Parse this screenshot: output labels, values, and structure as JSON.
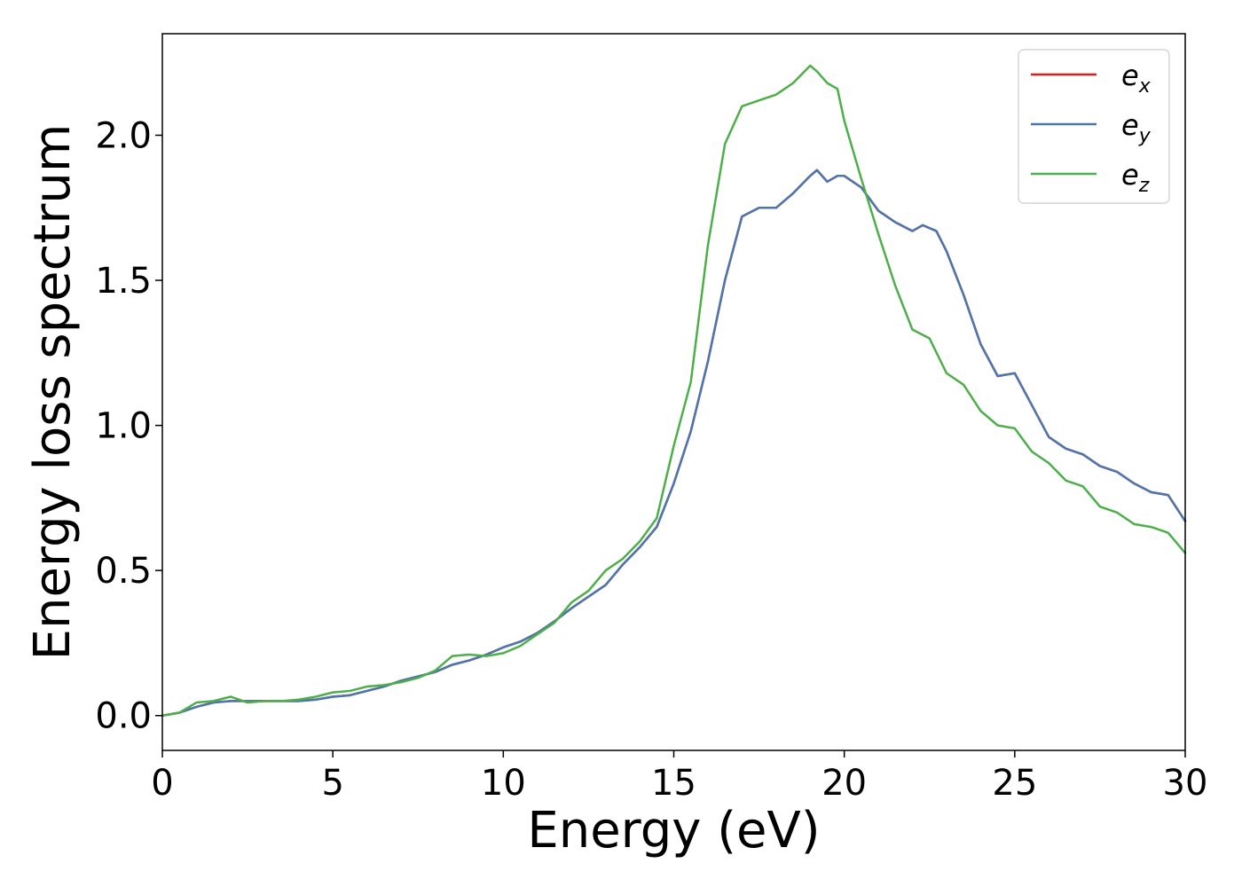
{
  "chart_data": {
    "type": "line",
    "title": "",
    "xlabel": "Energy (eV)",
    "ylabel": "Energy loss spectrum",
    "xlim": [
      0,
      30
    ],
    "ylim": [
      -0.12,
      2.35
    ],
    "xticks": [
      0,
      5,
      10,
      15,
      20,
      25,
      30
    ],
    "xtick_labels": [
      "0",
      "5",
      "10",
      "15",
      "20",
      "25",
      "30"
    ],
    "yticks": [
      0.0,
      0.5,
      1.0,
      1.5,
      2.0
    ],
    "ytick_labels": [
      "0.0",
      "0.5",
      "1.0",
      "1.5",
      "2.0"
    ],
    "grid": false,
    "legend_position": "top-right",
    "series": [
      {
        "name": "e_x",
        "label_base": "e",
        "label_sub": "x",
        "color": "#e41a1c",
        "x": [
          0,
          0.5,
          1,
          1.5,
          2,
          2.5,
          3,
          3.5,
          4,
          4.5,
          5,
          5.5,
          6,
          6.5,
          7,
          7.5,
          8,
          8.5,
          9,
          9.5,
          10,
          10.5,
          11,
          11.5,
          12,
          12.5,
          13,
          13.5,
          14,
          14.5,
          15,
          15.5,
          16,
          16.5,
          17,
          17.5,
          18,
          18.5,
          19,
          19.2,
          19.5,
          19.8,
          20,
          20.5,
          21,
          21.5,
          22,
          22.3,
          22.7,
          23,
          23.5,
          24,
          24.5,
          25,
          25.5,
          26,
          26.5,
          27,
          27.5,
          28,
          28.5,
          29,
          29.5,
          30
        ],
        "y": [
          0.0,
          0.01,
          0.03,
          0.045,
          0.05,
          0.05,
          0.05,
          0.05,
          0.05,
          0.055,
          0.065,
          0.07,
          0.085,
          0.1,
          0.12,
          0.135,
          0.15,
          0.175,
          0.19,
          0.21,
          0.235,
          0.255,
          0.285,
          0.325,
          0.37,
          0.41,
          0.45,
          0.52,
          0.58,
          0.65,
          0.8,
          0.98,
          1.22,
          1.5,
          1.72,
          1.75,
          1.75,
          1.8,
          1.86,
          1.88,
          1.84,
          1.86,
          1.86,
          1.82,
          1.74,
          1.7,
          1.67,
          1.69,
          1.67,
          1.6,
          1.45,
          1.28,
          1.17,
          1.18,
          1.07,
          0.96,
          0.92,
          0.9,
          0.86,
          0.84,
          0.8,
          0.77,
          0.76,
          0.67
        ]
      },
      {
        "name": "e_y",
        "label_base": "e",
        "label_sub": "y",
        "color": "#4a77ad",
        "x": [
          0,
          0.5,
          1,
          1.5,
          2,
          2.5,
          3,
          3.5,
          4,
          4.5,
          5,
          5.5,
          6,
          6.5,
          7,
          7.5,
          8,
          8.5,
          9,
          9.5,
          10,
          10.5,
          11,
          11.5,
          12,
          12.5,
          13,
          13.5,
          14,
          14.5,
          15,
          15.5,
          16,
          16.5,
          17,
          17.5,
          18,
          18.5,
          19,
          19.2,
          19.5,
          19.8,
          20,
          20.5,
          21,
          21.5,
          22,
          22.3,
          22.7,
          23,
          23.5,
          24,
          24.5,
          25,
          25.5,
          26,
          26.5,
          27,
          27.5,
          28,
          28.5,
          29,
          29.5,
          30
        ],
        "y": [
          0.0,
          0.01,
          0.03,
          0.045,
          0.05,
          0.05,
          0.05,
          0.05,
          0.05,
          0.055,
          0.065,
          0.07,
          0.085,
          0.1,
          0.12,
          0.135,
          0.15,
          0.175,
          0.19,
          0.21,
          0.235,
          0.255,
          0.285,
          0.325,
          0.37,
          0.41,
          0.45,
          0.52,
          0.58,
          0.65,
          0.8,
          0.98,
          1.22,
          1.5,
          1.72,
          1.75,
          1.75,
          1.8,
          1.86,
          1.88,
          1.84,
          1.86,
          1.86,
          1.82,
          1.74,
          1.7,
          1.67,
          1.69,
          1.67,
          1.6,
          1.45,
          1.28,
          1.17,
          1.18,
          1.07,
          0.96,
          0.92,
          0.9,
          0.86,
          0.84,
          0.8,
          0.77,
          0.76,
          0.67
        ]
      },
      {
        "name": "e_z",
        "label_base": "e",
        "label_sub": "z",
        "color": "#4daf4a",
        "x": [
          0,
          0.5,
          1,
          1.5,
          2,
          2.5,
          3,
          3.5,
          4,
          4.5,
          5,
          5.5,
          6,
          6.5,
          7,
          7.5,
          8,
          8.5,
          9,
          9.5,
          10,
          10.5,
          11,
          11.5,
          12,
          12.5,
          13,
          13.5,
          14,
          14.5,
          15,
          15.5,
          16,
          16.5,
          17,
          17.5,
          18,
          18.5,
          19,
          19.2,
          19.5,
          19.8,
          20,
          20.5,
          21,
          21.5,
          22,
          22.5,
          23,
          23.5,
          24,
          24.5,
          25,
          25.5,
          26,
          26.5,
          27,
          27.5,
          28,
          28.5,
          29,
          29.5,
          30
        ],
        "y": [
          0.0,
          0.01,
          0.045,
          0.05,
          0.065,
          0.045,
          0.05,
          0.05,
          0.055,
          0.065,
          0.08,
          0.085,
          0.1,
          0.105,
          0.115,
          0.13,
          0.155,
          0.205,
          0.21,
          0.205,
          0.215,
          0.24,
          0.28,
          0.32,
          0.39,
          0.43,
          0.5,
          0.54,
          0.6,
          0.68,
          0.93,
          1.15,
          1.62,
          1.97,
          2.1,
          2.12,
          2.14,
          2.18,
          2.24,
          2.22,
          2.18,
          2.16,
          2.05,
          1.85,
          1.66,
          1.48,
          1.33,
          1.3,
          1.18,
          1.14,
          1.05,
          1.0,
          0.99,
          0.91,
          0.87,
          0.81,
          0.79,
          0.72,
          0.7,
          0.66,
          0.65,
          0.63,
          0.56
        ]
      }
    ]
  }
}
